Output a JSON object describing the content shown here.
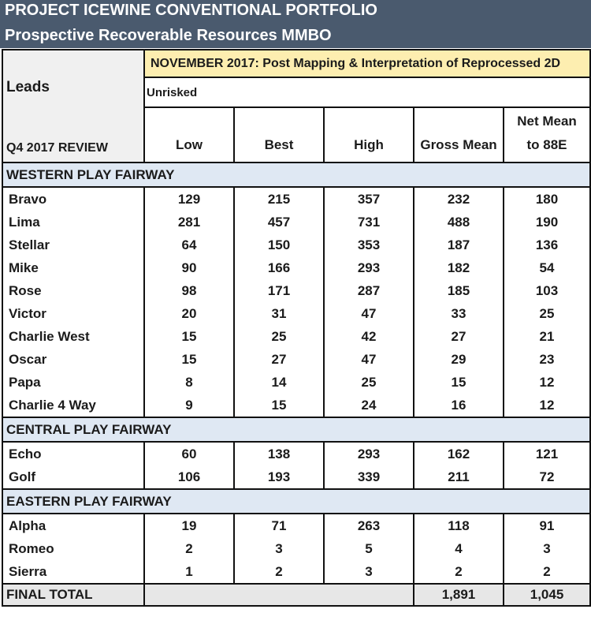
{
  "title": {
    "line1": "PROJECT ICEWINE CONVENTIONAL PORTFOLIO",
    "line2": "Prospective Recoverable Resources MMBO"
  },
  "header": {
    "leads": "Leads",
    "review": "Q4 2017 REVIEW",
    "period": "NOVEMBER 2017: Post Mapping & Interpretation of Reprocessed 2D",
    "risk": "Unrisked",
    "columns": [
      "Low",
      "Best",
      "High",
      "Gross Mean"
    ],
    "net_mean_line1": "Net Mean",
    "net_mean_line2": "to 88E"
  },
  "sections": [
    {
      "name": "WESTERN PLAY FAIRWAY",
      "rows": [
        {
          "lead": "Bravo",
          "low": "129",
          "best": "215",
          "high": "357",
          "gross": "232",
          "net": "180"
        },
        {
          "lead": "Lima",
          "low": "281",
          "best": "457",
          "high": "731",
          "gross": "488",
          "net": "190"
        },
        {
          "lead": "Stellar",
          "low": "64",
          "best": "150",
          "high": "353",
          "gross": "187",
          "net": "136"
        },
        {
          "lead": "Mike",
          "low": "90",
          "best": "166",
          "high": "293",
          "gross": "182",
          "net": "54"
        },
        {
          "lead": "Rose",
          "low": "98",
          "best": "171",
          "high": "287",
          "gross": "185",
          "net": "103"
        },
        {
          "lead": "Victor",
          "low": "20",
          "best": "31",
          "high": "47",
          "gross": "33",
          "net": "25"
        },
        {
          "lead": "Charlie West",
          "low": "15",
          "best": "25",
          "high": "42",
          "gross": "27",
          "net": "21"
        },
        {
          "lead": "Oscar",
          "low": "15",
          "best": "27",
          "high": "47",
          "gross": "29",
          "net": "23"
        },
        {
          "lead": "Papa",
          "low": "8",
          "best": "14",
          "high": "25",
          "gross": "15",
          "net": "12"
        },
        {
          "lead": "Charlie 4 Way",
          "low": "9",
          "best": "15",
          "high": "24",
          "gross": "16",
          "net": "12"
        }
      ]
    },
    {
      "name": "CENTRAL PLAY FAIRWAY",
      "rows": [
        {
          "lead": "Echo",
          "low": "60",
          "best": "138",
          "high": "293",
          "gross": "162",
          "net": "121"
        },
        {
          "lead": "Golf",
          "low": "106",
          "best": "193",
          "high": "339",
          "gross": "211",
          "net": "72"
        }
      ]
    },
    {
      "name": "EASTERN PLAY FAIRWAY",
      "rows": [
        {
          "lead": "Alpha",
          "low": "19",
          "best": "71",
          "high": "263",
          "gross": "118",
          "net": "91"
        },
        {
          "lead": "Romeo",
          "low": "2",
          "best": "3",
          "high": "5",
          "gross": "4",
          "net": "3"
        },
        {
          "lead": "Sierra",
          "low": "1",
          "best": "2",
          "high": "3",
          "gross": "2",
          "net": "2"
        }
      ]
    }
  ],
  "total": {
    "label": "FINAL TOTAL",
    "gross": "1,891",
    "net": "1,045"
  },
  "colors": {
    "title_bg": "#4a5a6e",
    "period_bg": "#fdeeb0",
    "section_bg": "#dfe8f3",
    "total_bg": "#e7e7e7"
  }
}
